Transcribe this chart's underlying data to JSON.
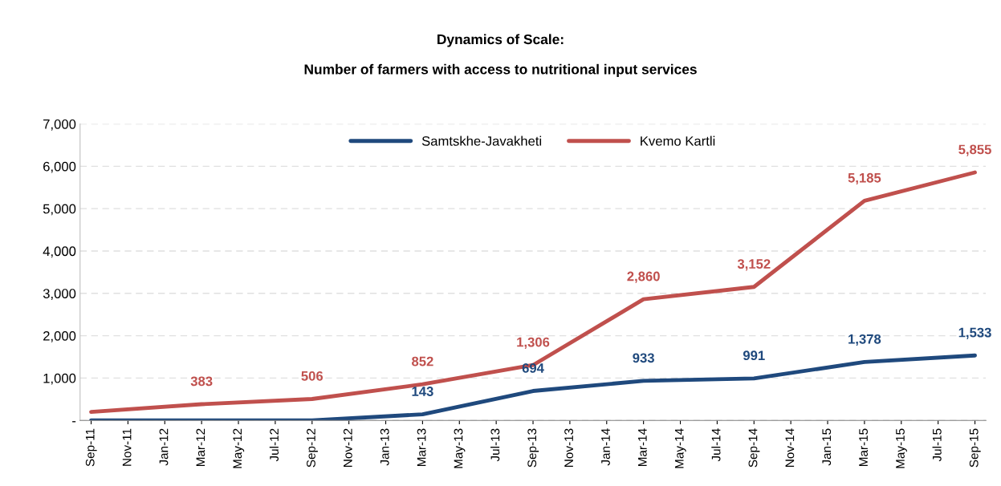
{
  "chart_data": {
    "type": "line",
    "title": "Dynamics of Scale:\n\nNumber of farmers with access to nutritional input services",
    "categories": [
      "Sep-11",
      "Nov-11",
      "Jan-12",
      "Mar-12",
      "May-12",
      "Jul-12",
      "Sep-12",
      "Nov-12",
      "Jan-13",
      "Mar-13",
      "May-13",
      "Jul-13",
      "Sep-13",
      "Nov-13",
      "Jan-14",
      "Mar-14",
      "May-14",
      "Jul-14",
      "Sep-14",
      "Nov-14",
      "Jan-15",
      "Mar-15",
      "May-15",
      "Jul-15",
      "Sep-15"
    ],
    "series": [
      {
        "name": "Samtskhe-Javakheti",
        "color": "#1f497d",
        "values": [
          0,
          null,
          null,
          0,
          null,
          null,
          0,
          null,
          null,
          143,
          null,
          null,
          694,
          null,
          null,
          933,
          null,
          null,
          991,
          null,
          null,
          1378,
          null,
          null,
          1533
        ],
        "value_labels": [
          null,
          null,
          null,
          null,
          null,
          null,
          null,
          null,
          null,
          "143",
          null,
          null,
          "694",
          null,
          null,
          "933",
          null,
          null,
          "991",
          null,
          null,
          "1,378",
          null,
          null,
          "1,533"
        ]
      },
      {
        "name": "Kvemo Kartli",
        "color": "#c0504d",
        "values": [
          200,
          null,
          null,
          383,
          null,
          null,
          506,
          null,
          null,
          852,
          null,
          null,
          1306,
          null,
          null,
          2860,
          null,
          null,
          3152,
          null,
          null,
          5185,
          null,
          null,
          5855
        ],
        "value_labels": [
          null,
          null,
          null,
          "383",
          null,
          null,
          "506",
          null,
          null,
          "852",
          null,
          null,
          "1,306",
          null,
          null,
          "2,860",
          null,
          null,
          "3,152",
          null,
          null,
          "5,185",
          null,
          null,
          "5,855"
        ]
      }
    ],
    "ylim": [
      0,
      7000
    ],
    "yticks": [
      {
        "value": 0,
        "label": "-"
      },
      {
        "value": 1000,
        "label": "1,000"
      },
      {
        "value": 2000,
        "label": "2,000"
      },
      {
        "value": 3000,
        "label": "3,000"
      },
      {
        "value": 4000,
        "label": "4,000"
      },
      {
        "value": 5000,
        "label": "5,000"
      },
      {
        "value": 6000,
        "label": "6,000"
      },
      {
        "value": 7000,
        "label": "7,000"
      }
    ],
    "grid": "y",
    "legend": "top",
    "marker": "none",
    "line_style": "solid"
  }
}
